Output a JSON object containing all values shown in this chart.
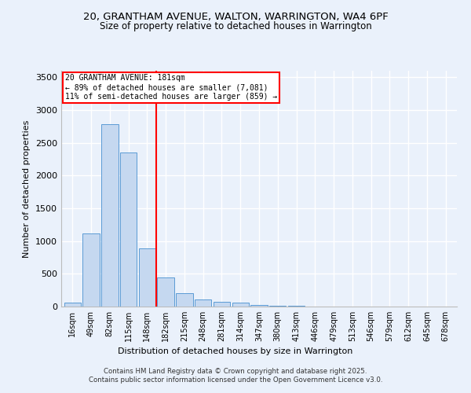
{
  "title_line1": "20, GRANTHAM AVENUE, WALTON, WARRINGTON, WA4 6PF",
  "title_line2": "Size of property relative to detached houses in Warrington",
  "xlabel": "Distribution of detached houses by size in Warrington",
  "ylabel": "Number of detached properties",
  "categories": [
    "16sqm",
    "49sqm",
    "82sqm",
    "115sqm",
    "148sqm",
    "182sqm",
    "215sqm",
    "248sqm",
    "281sqm",
    "314sqm",
    "347sqm",
    "380sqm",
    "413sqm",
    "446sqm",
    "479sqm",
    "513sqm",
    "546sqm",
    "579sqm",
    "612sqm",
    "645sqm",
    "678sqm"
  ],
  "values": [
    55,
    1120,
    2780,
    2350,
    890,
    440,
    200,
    105,
    75,
    55,
    30,
    15,
    10,
    5,
    2,
    1,
    0,
    0,
    0,
    0,
    0
  ],
  "bar_color": "#c5d8f0",
  "bar_edge_color": "#5b9bd5",
  "vline_x_index": 5,
  "vline_color": "red",
  "annotation_text": "20 GRANTHAM AVENUE: 181sqm\n← 89% of detached houses are smaller (7,081)\n11% of semi-detached houses are larger (859) →",
  "annotation_box_color": "red",
  "ylim": [
    0,
    3600
  ],
  "yticks": [
    0,
    500,
    1000,
    1500,
    2000,
    2500,
    3000,
    3500
  ],
  "bg_color": "#eaf1fb",
  "grid_color": "#ffffff",
  "footer_line1": "Contains HM Land Registry data © Crown copyright and database right 2025.",
  "footer_line2": "Contains public sector information licensed under the Open Government Licence v3.0."
}
